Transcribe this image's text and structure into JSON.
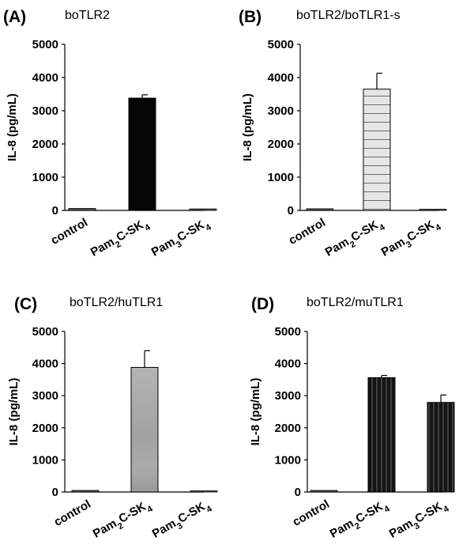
{
  "chart_data": [
    {
      "type": "bar",
      "panel": "(A)",
      "title": "boTLR2",
      "ylabel": "IL-8 (pg/mL)",
      "ylim": [
        0,
        5000
      ],
      "yticks": [
        "0",
        "1000",
        "2000",
        "3000",
        "4000",
        "5000"
      ],
      "categories": [
        "control",
        "Pam2C-SK4",
        "Pam3C-SK4"
      ],
      "categories_display": [
        {
          "base": "control"
        },
        {
          "a": "Pam",
          "sub1": "2",
          "b": "C-SK",
          "sub2": "4"
        },
        {
          "a": "Pam",
          "sub1": "3",
          "b": "C-SK",
          "sub2": "4"
        }
      ],
      "values": [
        60,
        3380,
        45
      ],
      "errors": [
        0,
        100,
        0
      ],
      "bar_style": "solid-black",
      "bar_color": "#050505"
    },
    {
      "type": "bar",
      "panel": "(B)",
      "title": "boTLR2/boTLR1-s",
      "ylabel": "IL-8 (pg/mL)",
      "ylim": [
        0,
        5000
      ],
      "yticks": [
        "0",
        "1000",
        "2000",
        "3000",
        "4000",
        "5000"
      ],
      "categories": [
        "control",
        "Pam2C-SK4",
        "Pam3C-SK4"
      ],
      "categories_display": [
        {
          "base": "control"
        },
        {
          "a": "Pam",
          "sub1": "2",
          "b": "C-SK",
          "sub2": "4"
        },
        {
          "a": "Pam",
          "sub1": "3",
          "b": "C-SK",
          "sub2": "4"
        }
      ],
      "values": [
        50,
        3650,
        25
      ],
      "errors": [
        0,
        480,
        0
      ],
      "bar_style": "horizontal-stripes",
      "bar_color": "#e8e8e8"
    },
    {
      "type": "bar",
      "panel": "(C)",
      "title": "boTLR2/huTLR1",
      "ylabel": "IL-8 (pg/mL)",
      "ylim": [
        0,
        5000
      ],
      "yticks": [
        "0",
        "1000",
        "2000",
        "3000",
        "4000",
        "5000"
      ],
      "categories": [
        "control",
        "Pam2C-SK4",
        "Pam3C-SK4"
      ],
      "categories_display": [
        {
          "base": "control"
        },
        {
          "a": "Pam",
          "sub1": "2",
          "b": "C-SK",
          "sub2": "4"
        },
        {
          "a": "Pam",
          "sub1": "3",
          "b": "C-SK",
          "sub2": "4"
        }
      ],
      "values": [
        50,
        3880,
        25
      ],
      "errors": [
        0,
        520,
        0
      ],
      "bar_style": "gray",
      "bar_color": "#a8a8a8"
    },
    {
      "type": "bar",
      "panel": "(D)",
      "title": "boTLR2/muTLR1",
      "ylabel": "IL-8 (pg/mL)",
      "ylim": [
        0,
        5000
      ],
      "yticks": [
        "0",
        "1000",
        "2000",
        "3000",
        "4000",
        "5000"
      ],
      "categories": [
        "control",
        "Pam2C-SK4",
        "Pam3C-SK4"
      ],
      "categories_display": [
        {
          "base": "control"
        },
        {
          "a": "Pam",
          "sub1": "2",
          "b": "C-SK",
          "sub2": "4"
        },
        {
          "a": "Pam",
          "sub1": "3",
          "b": "C-SK",
          "sub2": "4"
        }
      ],
      "values": [
        50,
        3560,
        2790
      ],
      "errors": [
        0,
        70,
        230
      ],
      "bar_style": "vertical-stripes",
      "bar_color": "#1a1a1a"
    }
  ]
}
